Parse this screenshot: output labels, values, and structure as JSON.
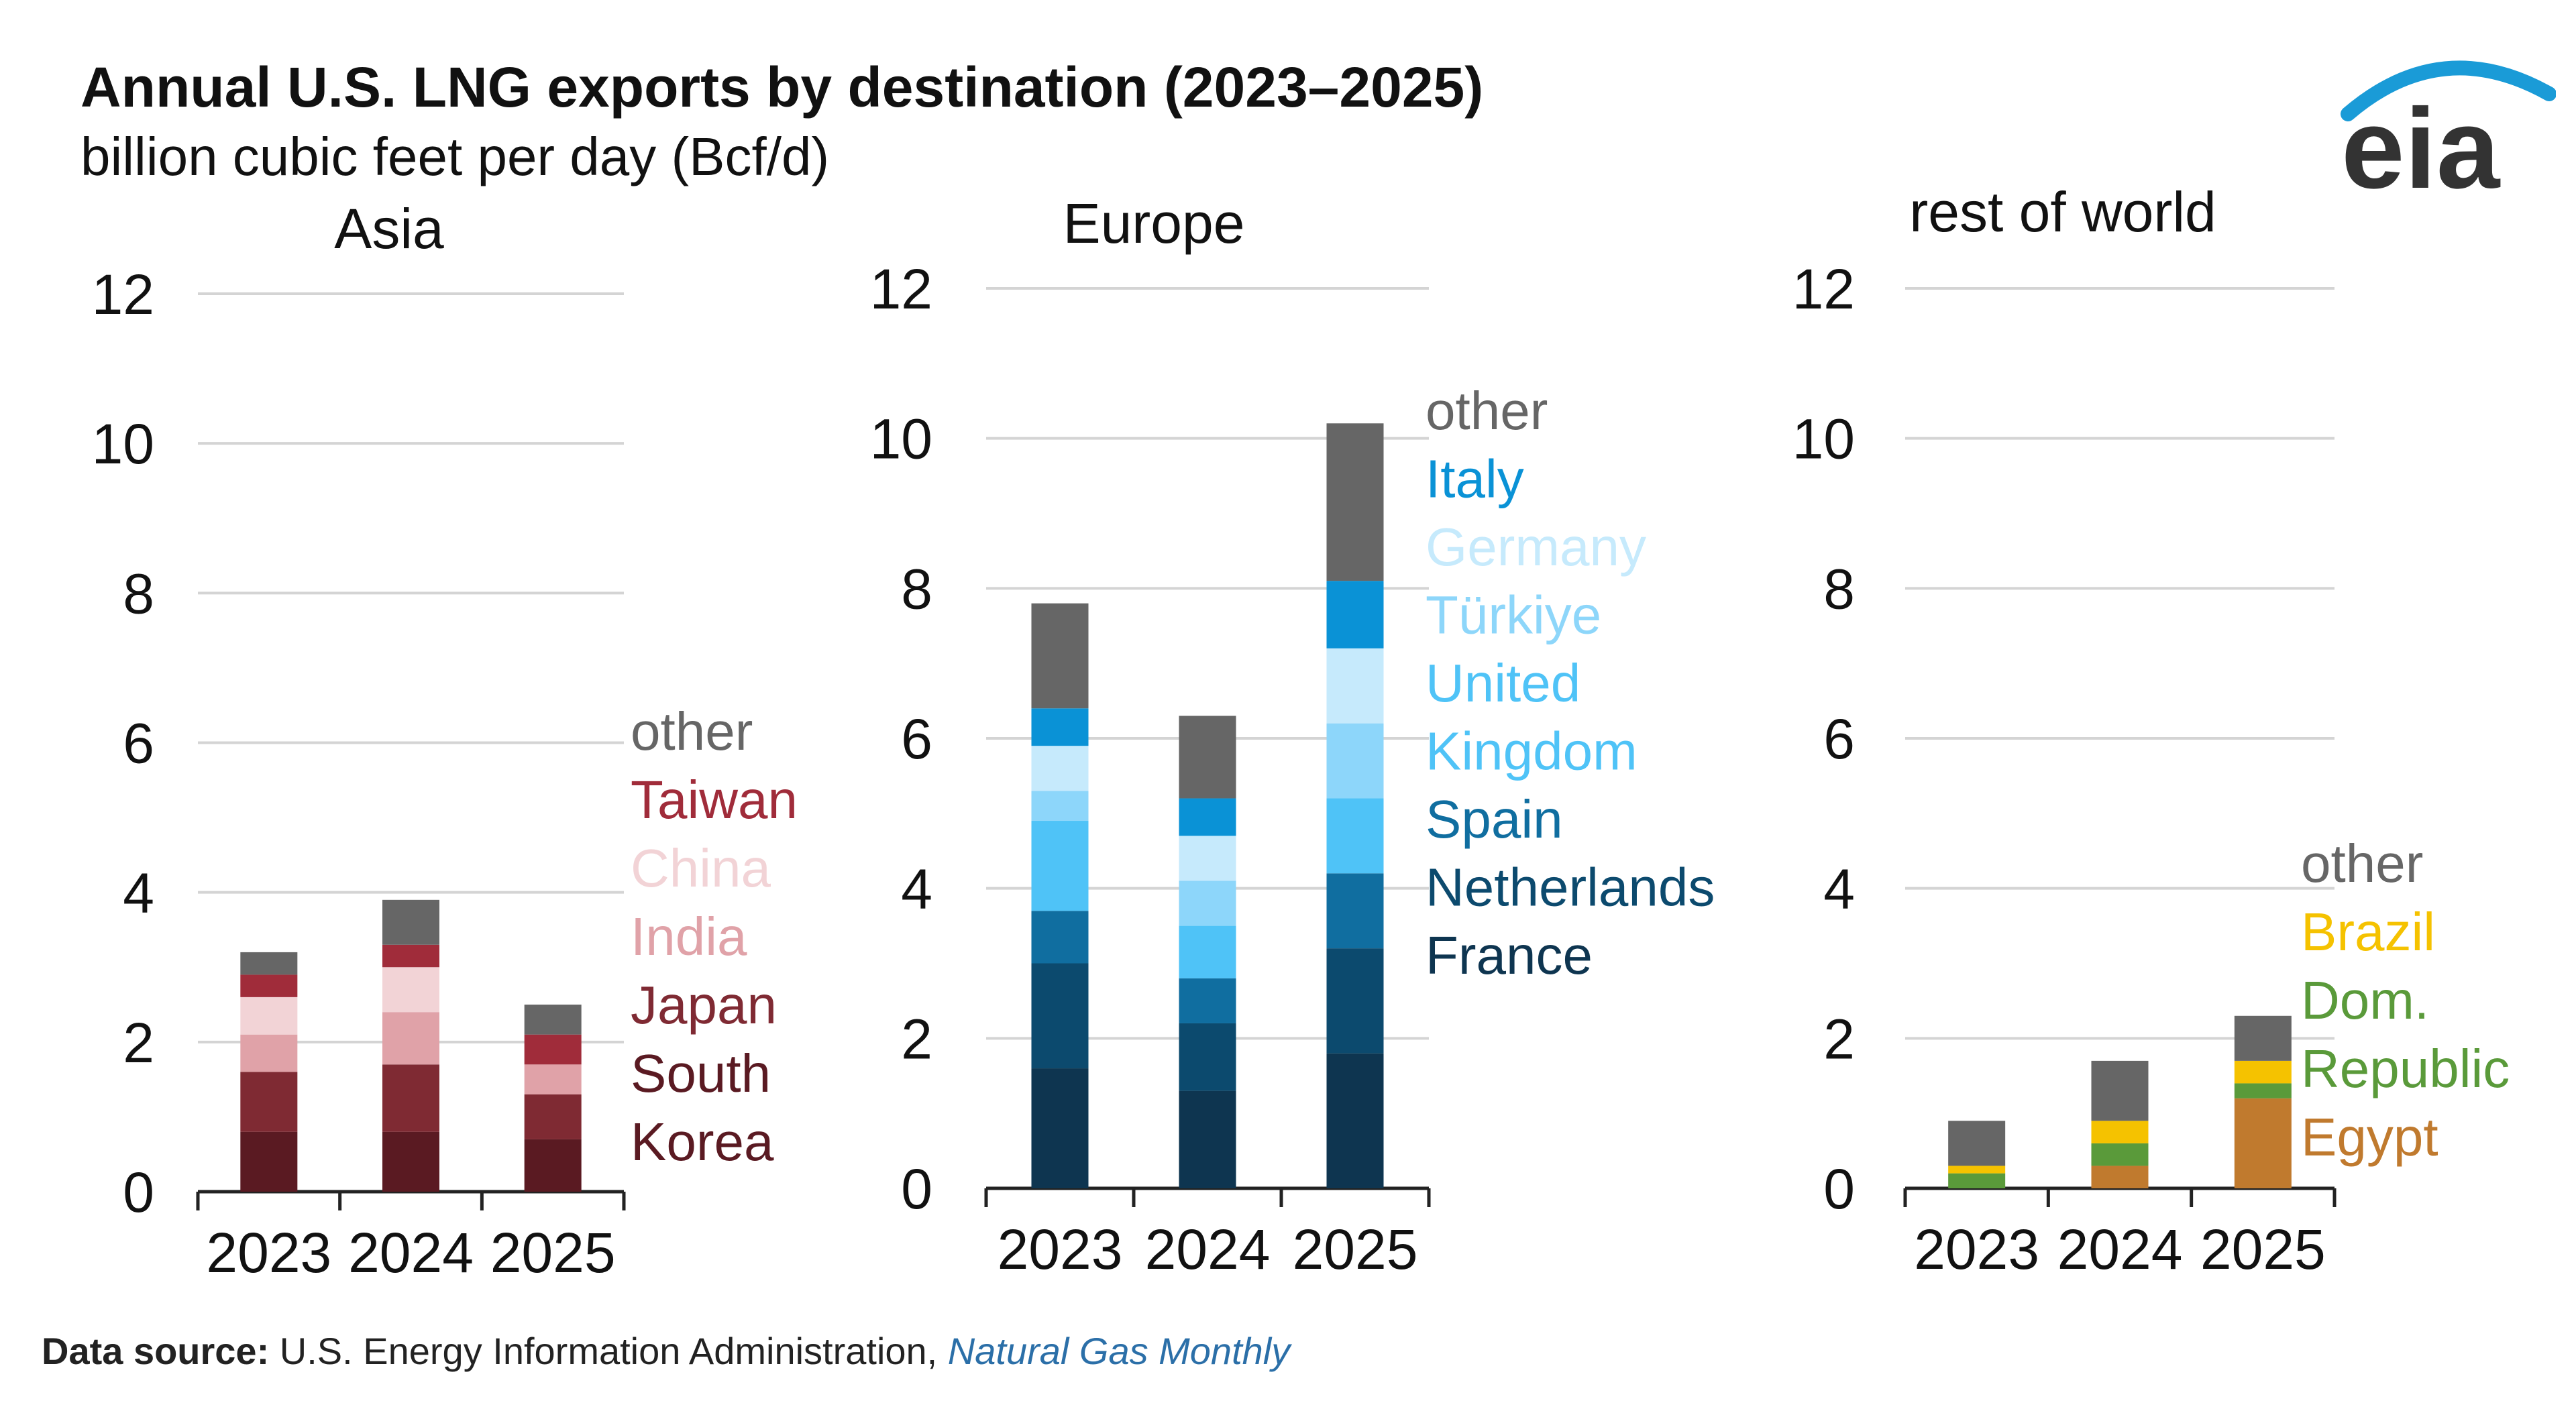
{
  "header": {
    "title": "Annual U.S. LNG exports by destination (2023–2025)",
    "subtitle": "billion cubic feet per day (Bcf/d)"
  },
  "logo": {
    "text": "eia",
    "color": "#333333",
    "arc_color": "#1a9bd7"
  },
  "source": {
    "label": "Data source:",
    "text": "U.S. Energy Information Administration,",
    "publication": "Natural Gas Monthly"
  },
  "chart_data": [
    {
      "type": "bar",
      "stacked": true,
      "title": "Asia",
      "categories": [
        "2023",
        "2024",
        "2025"
      ],
      "ylim": [
        0,
        12
      ],
      "yticks": [
        0,
        2,
        4,
        6,
        8,
        10,
        12
      ],
      "grid": true,
      "series": [
        {
          "name": "South Korea",
          "color": "#5a1a22",
          "values": [
            0.8,
            0.8,
            0.7
          ]
        },
        {
          "name": "Japan",
          "color": "#7f2a33",
          "values": [
            0.8,
            0.9,
            0.6
          ]
        },
        {
          "name": "India",
          "color": "#e0a2a8",
          "values": [
            0.5,
            0.7,
            0.4
          ]
        },
        {
          "name": "China",
          "color": "#f2d3d6",
          "values": [
            0.5,
            0.6,
            0.0
          ]
        },
        {
          "name": "Taiwan",
          "color": "#a02c3a",
          "values": [
            0.3,
            0.3,
            0.4
          ]
        },
        {
          "name": "other",
          "color": "#666666",
          "values": [
            0.3,
            0.6,
            0.4
          ]
        }
      ],
      "legend": [
        {
          "text": "other",
          "color": "#666666"
        },
        {
          "text": "Taiwan",
          "color": "#a02c3a"
        },
        {
          "text": "China",
          "color": "#f2d3d6"
        },
        {
          "text": "India",
          "color": "#e0a2a8"
        },
        {
          "text": "Japan",
          "color": "#7f2a33"
        },
        {
          "text": "South",
          "color": "#5a1a22"
        },
        {
          "text": "Korea",
          "color": "#5a1a22"
        }
      ]
    },
    {
      "type": "bar",
      "stacked": true,
      "title": "Europe",
      "categories": [
        "2023",
        "2024",
        "2025"
      ],
      "ylim": [
        0,
        12
      ],
      "yticks": [
        0,
        2,
        4,
        6,
        8,
        10,
        12
      ],
      "grid": true,
      "series": [
        {
          "name": "France",
          "color": "#0e3550",
          "values": [
            1.6,
            1.3,
            1.8
          ]
        },
        {
          "name": "Netherlands",
          "color": "#0c4a6e",
          "values": [
            1.4,
            0.9,
            1.4
          ]
        },
        {
          "name": "Spain",
          "color": "#106ea0",
          "values": [
            0.7,
            0.6,
            1.0
          ]
        },
        {
          "name": "United Kingdom",
          "color": "#4fc3f7",
          "values": [
            1.2,
            0.7,
            1.0
          ]
        },
        {
          "name": "Türkiye",
          "color": "#8dd6fa",
          "values": [
            0.4,
            0.6,
            1.0
          ]
        },
        {
          "name": "Germany",
          "color": "#c6eafc",
          "values": [
            0.6,
            0.6,
            1.0
          ]
        },
        {
          "name": "Italy",
          "color": "#0a92d6",
          "values": [
            0.5,
            0.5,
            0.9
          ]
        },
        {
          "name": "other",
          "color": "#666666",
          "values": [
            1.4,
            1.1,
            2.1
          ]
        }
      ],
      "legend": [
        {
          "text": "other",
          "color": "#666666"
        },
        {
          "text": "Italy",
          "color": "#0a92d6"
        },
        {
          "text": "Germany",
          "color": "#c6eafc"
        },
        {
          "text": "Türkiye",
          "color": "#8dd6fa"
        },
        {
          "text": "United",
          "color": "#4fc3f7"
        },
        {
          "text": "Kingdom",
          "color": "#4fc3f7"
        },
        {
          "text": "Spain",
          "color": "#106ea0"
        },
        {
          "text": "Netherlands",
          "color": "#0c4a6e"
        },
        {
          "text": "France",
          "color": "#0e3550"
        }
      ]
    },
    {
      "type": "bar",
      "stacked": true,
      "title": "rest of world",
      "categories": [
        "2023",
        "2024",
        "2025"
      ],
      "ylim": [
        0,
        12
      ],
      "yticks": [
        0,
        2,
        4,
        6,
        8,
        10,
        12
      ],
      "grid": true,
      "series": [
        {
          "name": "Egypt",
          "color": "#c07a2e",
          "values": [
            0.0,
            0.3,
            1.2
          ]
        },
        {
          "name": "Dom. Republic",
          "color": "#5a9a3a",
          "values": [
            0.2,
            0.3,
            0.2
          ]
        },
        {
          "name": "Brazil",
          "color": "#f5c200",
          "values": [
            0.1,
            0.3,
            0.3
          ]
        },
        {
          "name": "other",
          "color": "#666666",
          "values": [
            0.6,
            0.8,
            0.6
          ]
        }
      ],
      "legend": [
        {
          "text": "other",
          "color": "#666666"
        },
        {
          "text": "Brazil",
          "color": "#f5c200"
        },
        {
          "text": "Dom.",
          "color": "#5a9a3a"
        },
        {
          "text": "Republic",
          "color": "#5a9a3a"
        },
        {
          "text": "Egypt",
          "color": "#c07a2e"
        }
      ]
    }
  ]
}
